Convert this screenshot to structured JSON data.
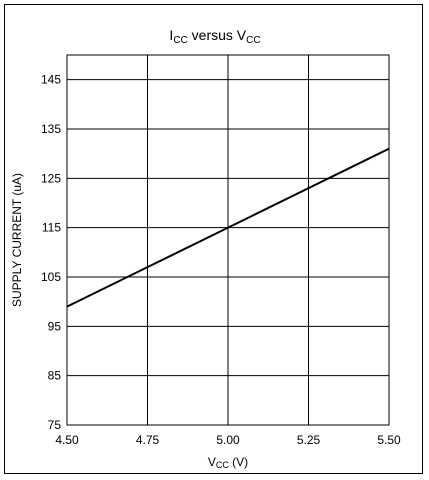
{
  "chart_data": {
    "type": "line",
    "title": {
      "main": "I",
      "main_sub": "CC",
      "middle": " versus V",
      "end_sub": "CC"
    },
    "xlabel": {
      "main": "V",
      "sub": "CC",
      "rest": " (V)"
    },
    "ylabel": "SUPPLY CURRENT (uA)",
    "x_ticks": [
      4.5,
      4.75,
      5.0,
      5.25,
      5.5
    ],
    "x_tick_labels": [
      "4.50",
      "4.75",
      "5.00",
      "5.25",
      "5.50"
    ],
    "y_ticks": [
      75,
      85,
      95,
      105,
      115,
      125,
      135,
      145
    ],
    "y_tick_labels": [
      "75",
      "85",
      "95",
      "105",
      "115",
      "125",
      "135",
      "145"
    ],
    "xlim": [
      4.5,
      5.5
    ],
    "ylim": [
      75,
      150
    ],
    "grid": true,
    "series": [
      {
        "x": [
          4.5,
          5.5
        ],
        "y": [
          99,
          131
        ]
      }
    ],
    "colors": {
      "line": "#000000",
      "grid": "#000000",
      "frame": "#000000"
    }
  }
}
